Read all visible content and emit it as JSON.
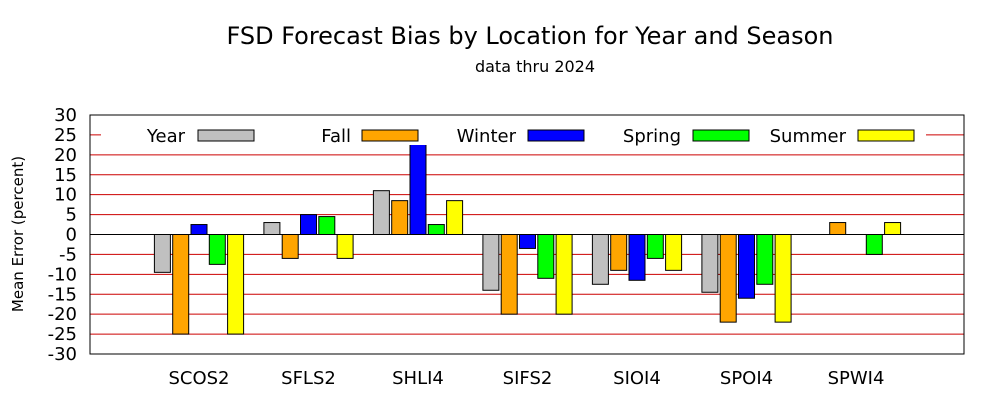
{
  "chart_data": {
    "type": "bar",
    "title": "FSD Forecast Bias by Location for Year and Season",
    "subtitle": "data thru 2024",
    "ylabel": "Mean Error (percent)",
    "xlabel": "",
    "ylim": [
      -30,
      30
    ],
    "yticks": [
      30,
      25,
      20,
      15,
      10,
      5,
      0,
      -5,
      -10,
      -15,
      -20,
      -25,
      -30
    ],
    "grid": true,
    "legend_position": "top",
    "categories": [
      "SCOS2",
      "SFLS2",
      "SHLI4",
      "SIFS2",
      "SIOI4",
      "SPOI4",
      "SPWI4"
    ],
    "series": [
      {
        "name": "Year",
        "color": "#c0c0c0",
        "values": [
          -9.5,
          3,
          11,
          -14,
          -12.5,
          -14.5,
          null
        ]
      },
      {
        "name": "Fall",
        "color": "#ffa500",
        "values": [
          -25,
          -6,
          8.5,
          -20,
          -9,
          -22,
          3
        ]
      },
      {
        "name": "Winter",
        "color": "#0000ff",
        "values": [
          2.5,
          5,
          24,
          -3.5,
          -11.5,
          -16,
          null
        ]
      },
      {
        "name": "Spring",
        "color": "#00ff00",
        "values": [
          -7.5,
          4.5,
          2.5,
          -11,
          -6,
          -12.5,
          -5
        ]
      },
      {
        "name": "Summer",
        "color": "#ffff00",
        "values": [
          -25,
          -6,
          8.5,
          -20,
          -9,
          -22,
          3
        ]
      }
    ],
    "zero_line_color": "#000000",
    "gridline_color": "#cc0000"
  }
}
